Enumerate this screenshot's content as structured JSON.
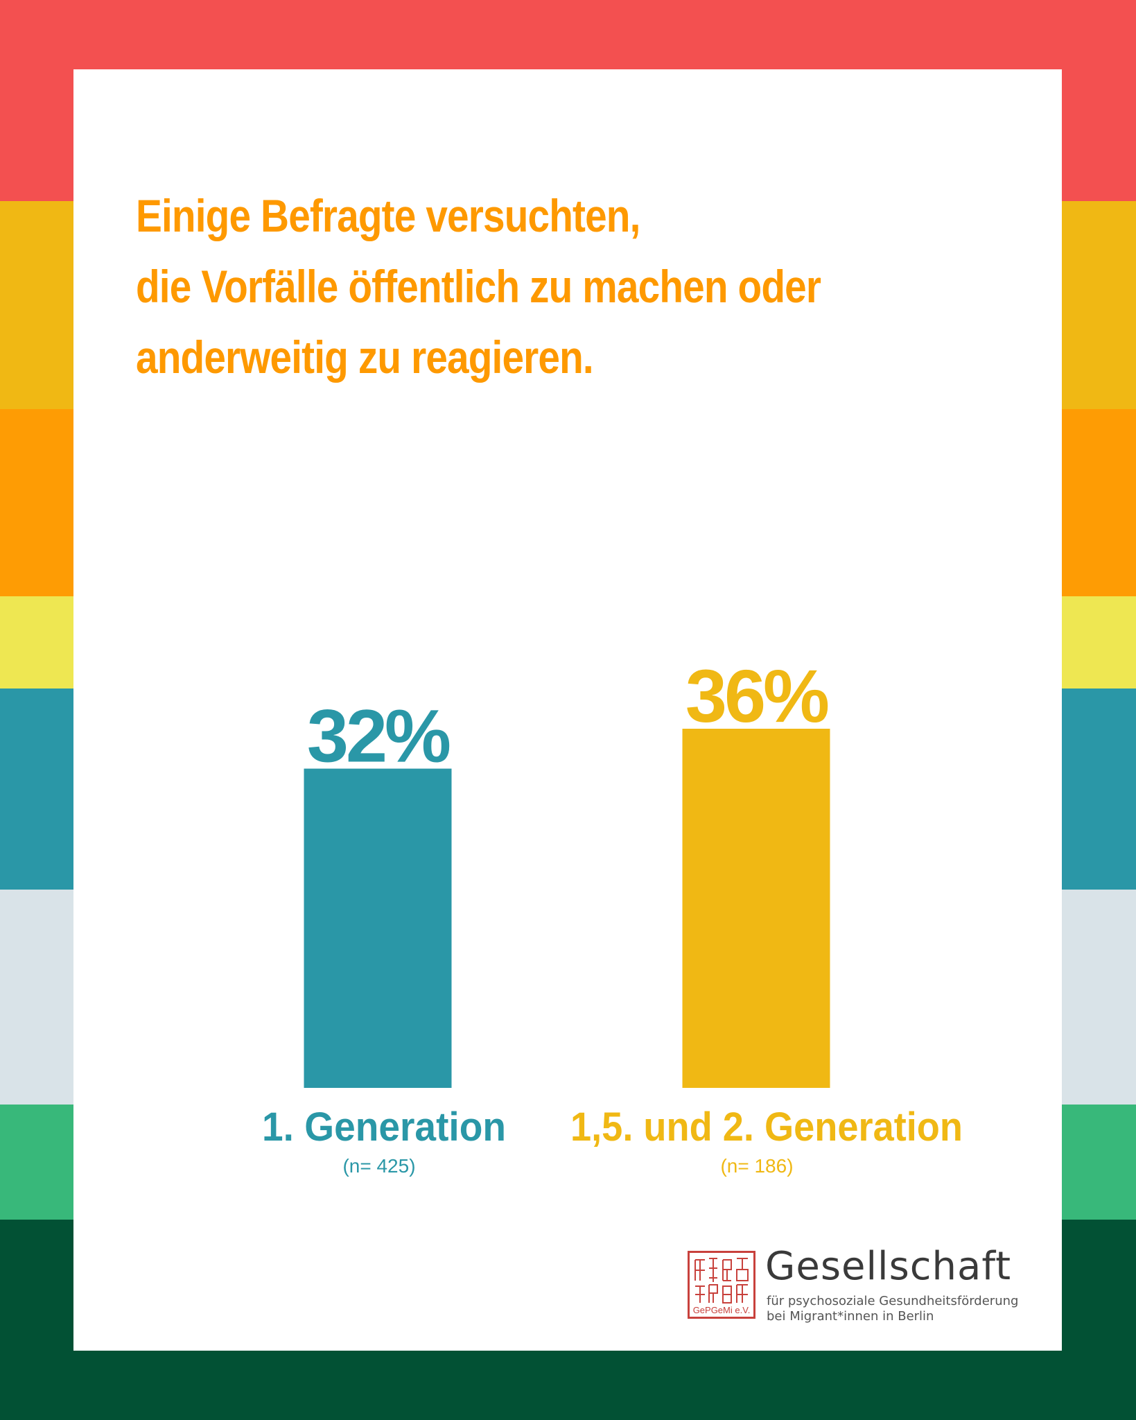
{
  "background_stripes": [
    "#f35050",
    "#f0b814",
    "#fe9c04",
    "#eee752",
    "#2a97a7",
    "#d9e3e8",
    "#38b87a",
    "#025134"
  ],
  "title": {
    "lines": [
      "Einige Befragte versuchten,",
      "die Vorfälle öffentlich zu machen oder",
      "anderweitig zu reagieren."
    ],
    "color": "#fe9900"
  },
  "chart_data": {
    "type": "bar",
    "title": "Einige Befragte versuchten, die Vorfälle öffentlich zu machen oder anderweitig zu reagieren.",
    "categories": [
      "1.  Generation",
      "1,5. und 2.  Generation"
    ],
    "sample_sizes": [
      "(n= 425)",
      "(n= 186)"
    ],
    "values": [
      32,
      36
    ],
    "value_labels": [
      "32%",
      "36%"
    ],
    "colors": [
      "#2a97a7",
      "#f0b814"
    ],
    "unit": "%",
    "ylim": [
      0,
      36
    ],
    "grid": false,
    "legend": "none"
  },
  "logo": {
    "name": "Gesellschaft",
    "subtitle_line1": "für psychosoziale Gesundheitsförderung",
    "subtitle_line2": "bei Migrant*innen in Berlin",
    "seal_text": "GePGeMi e.V.",
    "seal_color": "#c8413c"
  }
}
